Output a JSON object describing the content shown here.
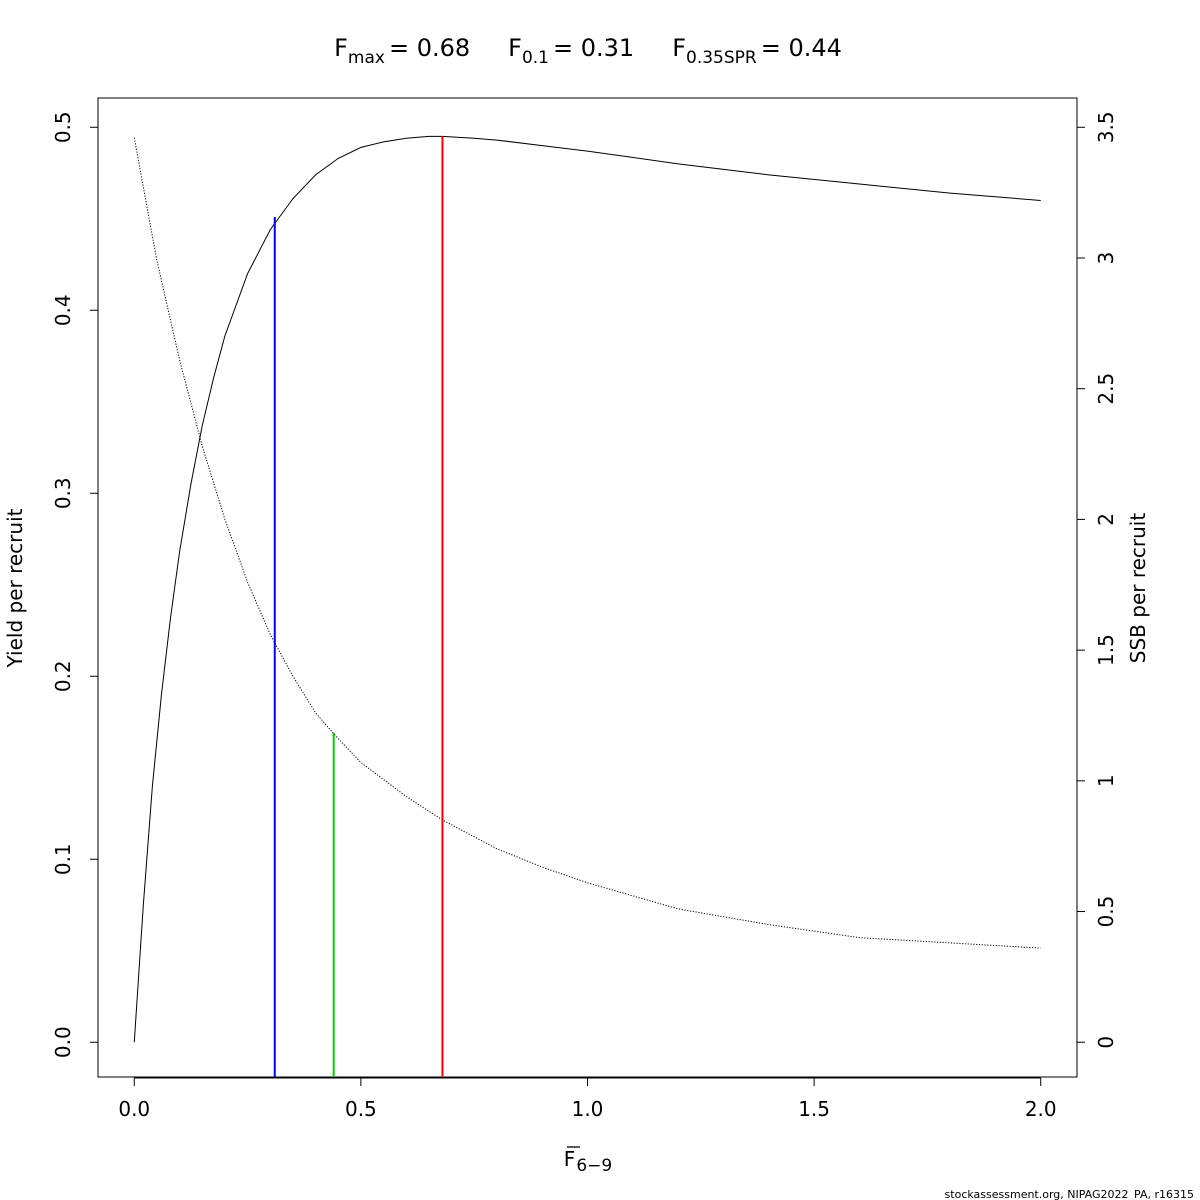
{
  "chart_data": {
    "type": "line",
    "title": {
      "items": [
        {
          "base": "F",
          "sub": "max",
          "value": "= 0.68"
        },
        {
          "base": "F",
          "sub": "0.1",
          "value": "= 0.31"
        },
        {
          "base": "F",
          "sub": "0.35SPR",
          "value": "= 0.44"
        }
      ]
    },
    "xlabel": {
      "base": "F",
      "sub": "6−9",
      "overline": true
    },
    "ylabel_left": "Yield per recruit",
    "ylabel_right": "SSB per recruit",
    "xlim": [
      -0.08,
      2.08
    ],
    "ylim_left": [
      -0.019,
      0.516
    ],
    "ylim_right": [
      -0.133,
      3.612
    ],
    "x_ticks": [
      0,
      0.5,
      1,
      1.5,
      2
    ],
    "x_tick_labels": [
      "0.0",
      "0.5",
      "1.0",
      "1.5",
      "2.0"
    ],
    "y_left_ticks": [
      0,
      0.1,
      0.2,
      0.3,
      0.4,
      0.5
    ],
    "y_left_tick_labels": [
      "0.0",
      "0.1",
      "0.2",
      "0.3",
      "0.4",
      "0.5"
    ],
    "y_right_ticks": [
      0,
      0.5,
      1,
      1.5,
      2,
      2.5,
      3,
      3.5
    ],
    "y_right_tick_labels": [
      "0",
      "0.5",
      "1",
      "1.5",
      "2",
      "2.5",
      "3",
      "3.5"
    ],
    "series": [
      {
        "axis": "left",
        "style": "solid",
        "color": "#000000",
        "x": [
          0,
          0.02,
          0.04,
          0.06,
          0.08,
          0.1,
          0.125,
          0.15,
          0.175,
          0.2,
          0.25,
          0.3,
          0.35,
          0.4,
          0.45,
          0.5,
          0.55,
          0.6,
          0.65,
          0.68,
          0.75,
          0.8,
          0.9,
          1.0,
          1.2,
          1.4,
          1.6,
          1.8,
          2.0
        ],
        "values": [
          0,
          0.075,
          0.14,
          0.19,
          0.232,
          0.268,
          0.305,
          0.337,
          0.363,
          0.386,
          0.42,
          0.444,
          0.461,
          0.474,
          0.483,
          0.489,
          0.492,
          0.494,
          0.495,
          0.495,
          0.494,
          0.493,
          0.49,
          0.487,
          0.48,
          0.474,
          0.469,
          0.464,
          0.46
        ]
      },
      {
        "axis": "right",
        "style": "dotted",
        "color": "#000000",
        "x": [
          0,
          0.05,
          0.1,
          0.15,
          0.2,
          0.25,
          0.3,
          0.35,
          0.4,
          0.44,
          0.5,
          0.6,
          0.68,
          0.8,
          0.9,
          1.0,
          1.2,
          1.4,
          1.6,
          1.8,
          2.0
        ],
        "values": [
          3.46,
          2.99,
          2.61,
          2.28,
          2.0,
          1.76,
          1.56,
          1.4,
          1.26,
          1.18,
          1.07,
          0.94,
          0.85,
          0.74,
          0.67,
          0.61,
          0.51,
          0.45,
          0.4,
          0.38,
          0.36
        ]
      }
    ],
    "reference_lines": [
      {
        "name": "F0.1",
        "x": 0.31,
        "y_left": 0.451,
        "color": "#0000ff"
      },
      {
        "name": "F0.35SPR",
        "x": 0.44,
        "y_left": 0.169,
        "color": "#00cd00"
      },
      {
        "name": "Fmax",
        "x": 0.68,
        "y_left": 0.495,
        "color": "#ff0000"
      }
    ],
    "grid": false,
    "legend": "none"
  },
  "footer": {
    "credit": "stockassessment.org, NIPAG2022_PA, r16315"
  }
}
